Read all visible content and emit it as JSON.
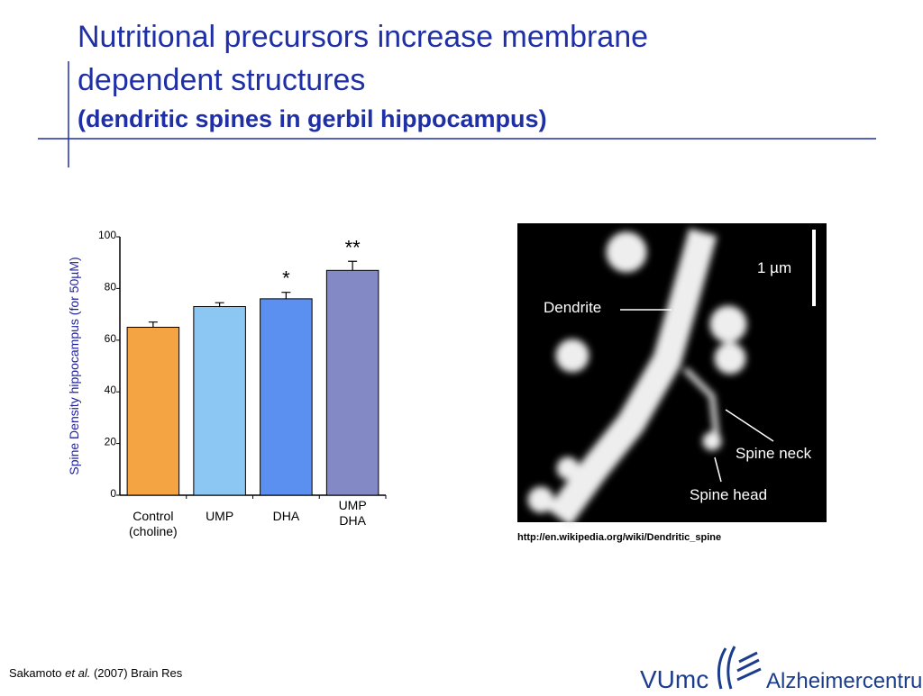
{
  "slide": {
    "title_lines": [
      "Nutritional precursors increase membrane",
      "dependent structures"
    ],
    "subtitle": "(dendritic spines in gerbil hippocampus)",
    "image": {
      "scale": "1 µm",
      "labels": [
        "Dendrite",
        "Spine neck",
        "Spine head"
      ],
      "source": "http://en.wikipedia.org/wiki/Dendritic_spine"
    },
    "citation": [
      "Sakamoto ",
      "et al.",
      " (2007) Brain Res"
    ],
    "logo": [
      "VUmc",
      "Alzheimercentrum"
    ]
  },
  "chart_data": {
    "type": "bar",
    "y_label": "Spine Density hippocampus (for 50µM)",
    "categories": [
      [
        "Control",
        "(choline)"
      ],
      [
        "UMP"
      ],
      [
        "DHA"
      ],
      [
        "UMP",
        "DHA"
      ]
    ],
    "values": [
      65,
      73,
      76,
      87
    ],
    "errors": [
      2,
      1.5,
      2.5,
      3.5
    ],
    "colors": [
      "#f5a443",
      "#8cc6f2",
      "#5b8ff0",
      "#8289c4"
    ],
    "significance": [
      null,
      null,
      "*",
      "**"
    ],
    "ylim": [
      0,
      100
    ],
    "yticks": [
      0,
      20,
      40,
      60,
      80,
      100
    ]
  }
}
